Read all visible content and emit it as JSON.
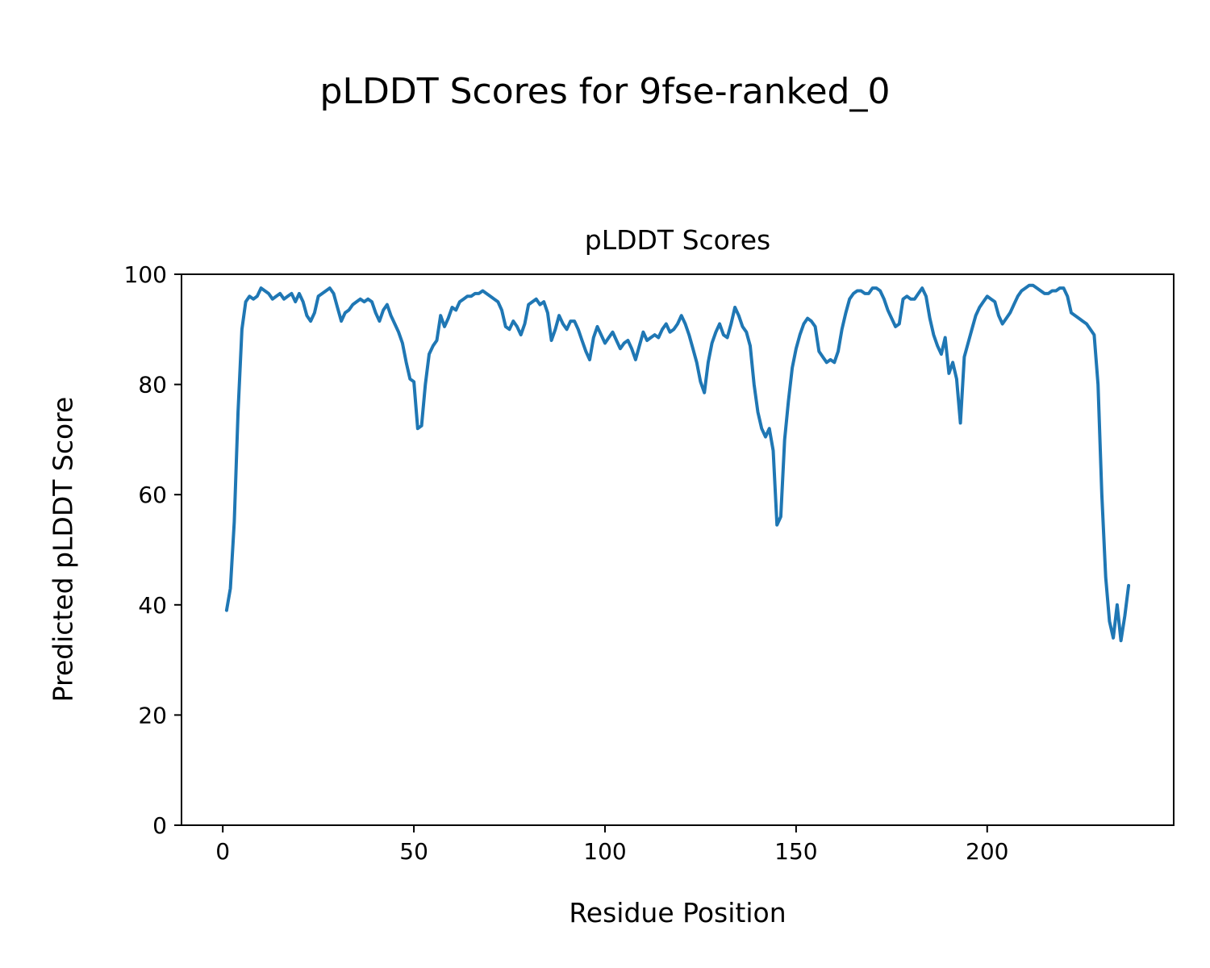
{
  "figure": {
    "background": "#ffffff",
    "text_color": "#000000"
  },
  "chart_data": {
    "type": "line",
    "suptitle": "pLDDT Scores for 9fse-ranked_0",
    "title": "pLDDT Scores",
    "xlabel": "Residue Position",
    "ylabel": "Predicted pLDDT Score",
    "xlim": [
      -10.8,
      248.8
    ],
    "ylim": [
      0,
      100
    ],
    "xticks": [
      0,
      50,
      100,
      150,
      200
    ],
    "yticks": [
      0,
      20,
      40,
      60,
      80,
      100
    ],
    "grid": false,
    "legend": null,
    "line_color": "#1f77b4",
    "x_start": 1,
    "x_step": 1,
    "values": [
      39,
      43,
      55,
      75,
      90,
      95,
      96,
      95.5,
      96,
      97.5,
      97,
      96.5,
      95.5,
      96,
      96.5,
      95.5,
      96,
      96.5,
      95,
      96.5,
      95,
      92.5,
      91.5,
      93,
      96,
      96.5,
      97,
      97.5,
      96.5,
      94,
      91.5,
      93,
      93.5,
      94.5,
      95,
      95.5,
      95,
      95.5,
      95,
      93,
      91.5,
      93.5,
      94.5,
      92.5,
      91,
      89.5,
      87.5,
      84,
      81,
      80.5,
      72,
      72.5,
      80,
      85.5,
      87,
      88,
      92.5,
      90.5,
      92,
      94,
      93.5,
      95,
      95.5,
      96,
      96,
      96.5,
      96.5,
      97,
      96.5,
      96,
      95.5,
      95,
      93.5,
      90.5,
      90,
      91.5,
      90.5,
      89,
      91,
      94.5,
      95,
      95.5,
      94.5,
      95,
      93,
      88,
      90,
      92.5,
      91,
      90,
      91.5,
      91.5,
      90,
      88,
      86,
      84.5,
      88.5,
      90.5,
      89,
      87.5,
      88.5,
      89.5,
      88,
      86.5,
      87.5,
      88,
      86.5,
      84.5,
      87,
      89.5,
      88,
      88.5,
      89,
      88.5,
      90,
      91,
      89.5,
      90,
      91,
      92.5,
      91,
      89,
      86.5,
      84,
      80.5,
      78.5,
      84,
      87.5,
      89.5,
      91,
      89,
      88.5,
      91,
      94,
      92.5,
      90.5,
      89.5,
      87,
      80,
      75,
      72,
      70.5,
      72,
      68,
      54.5,
      56,
      70,
      77,
      83,
      86.5,
      89,
      91,
      92,
      91.5,
      90.5,
      86,
      85,
      84,
      84.5,
      84,
      86,
      90,
      93,
      95.5,
      96.5,
      97,
      97,
      96.5,
      96.5,
      97.5,
      97.5,
      97,
      95.5,
      93.5,
      92,
      90.5,
      91,
      95.5,
      96,
      95.5,
      95.5,
      96.5,
      97.5,
      96,
      92,
      89,
      87,
      85.5,
      88.5,
      82,
      84,
      81,
      73,
      85,
      87.5,
      90,
      92.5,
      94,
      95,
      96,
      95.5,
      95,
      92.5,
      91,
      92,
      93,
      94.5,
      96,
      97,
      97.5,
      98,
      98,
      97.5,
      97,
      96.5,
      96.5,
      97,
      97,
      97.5,
      97.5,
      96,
      93,
      92.5,
      92,
      91.5,
      91,
      90,
      89,
      80,
      60,
      45,
      37,
      34,
      40,
      33.5,
      38,
      43.5
    ]
  }
}
